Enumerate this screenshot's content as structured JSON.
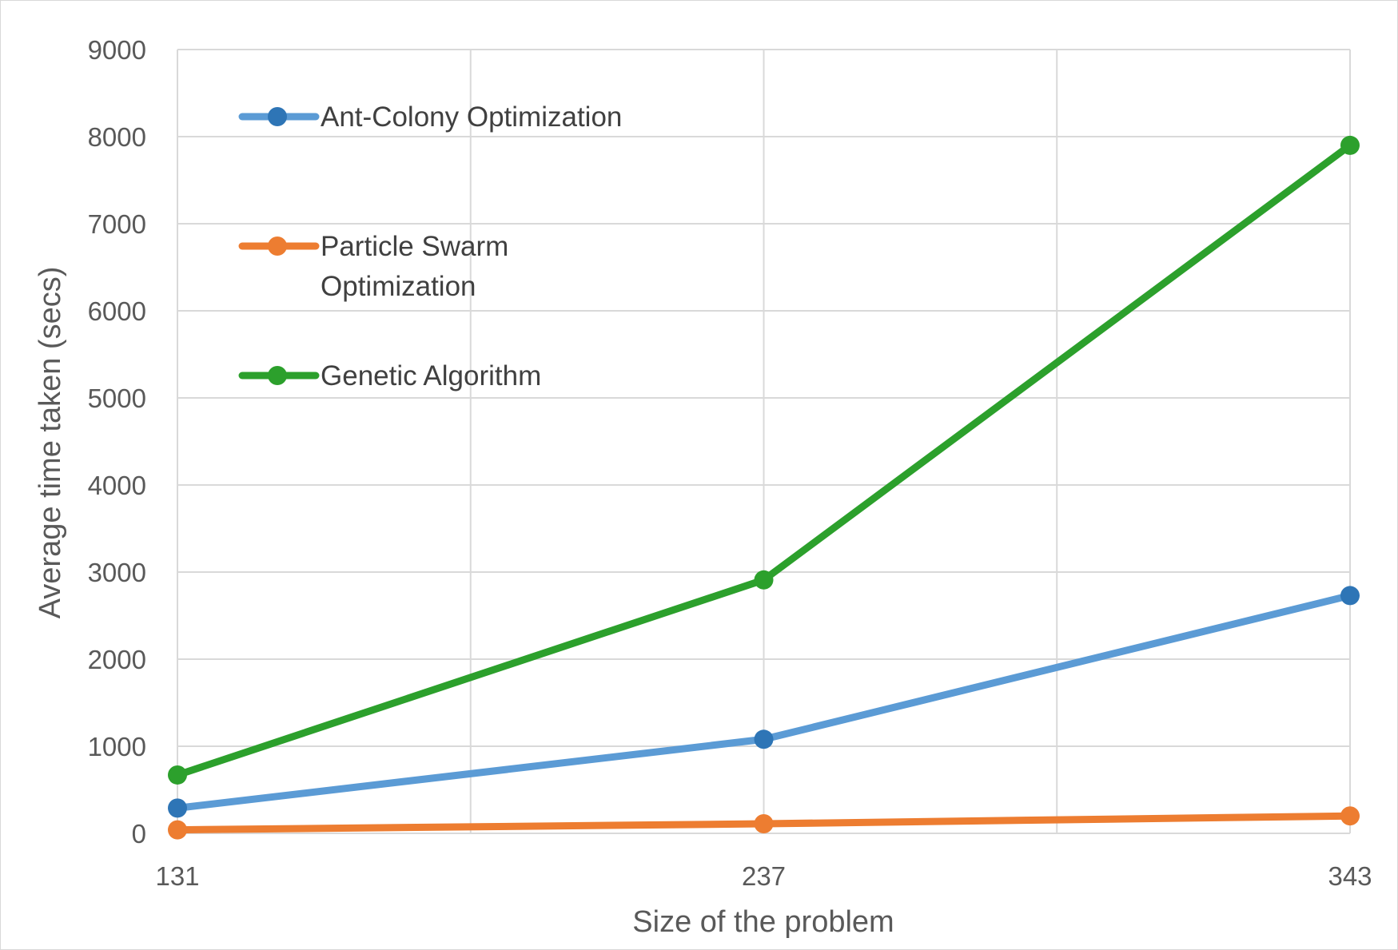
{
  "chart_data": {
    "type": "line",
    "title": "",
    "xlabel": "Size of the problem",
    "ylabel": "Average time taken (secs)",
    "categories": [
      "131",
      "237",
      "343"
    ],
    "ylim": [
      0,
      9000
    ],
    "y_ticks": [
      0,
      1000,
      2000,
      3000,
      4000,
      5000,
      6000,
      7000,
      8000,
      9000
    ],
    "y_tick_labels": [
      "0",
      "1000",
      "2000",
      "3000",
      "4000",
      "5000",
      "6000",
      "7000",
      "8000",
      "9000"
    ],
    "grid": true,
    "legend_position": "top-left",
    "series": [
      {
        "name": "Ant-Colony Optimization",
        "name_lines": [
          "Ant-Colony Optimization"
        ],
        "values": [
          290,
          1080,
          2730
        ],
        "line_color": "#5B9BD5",
        "marker_color": "#2E75B6"
      },
      {
        "name": "Particle Swarm Optimization",
        "name_lines": [
          "Particle Swarm",
          "Optimization"
        ],
        "values": [
          40,
          110,
          200
        ],
        "line_color": "#ED7D31",
        "marker_color": "#ED7D31"
      },
      {
        "name": "Genetic Algorithm",
        "name_lines": [
          "Genetic Algorithm"
        ],
        "values": [
          670,
          2910,
          7900
        ],
        "line_color": "#2CA02C",
        "marker_color": "#2CA02C"
      }
    ],
    "colors": {
      "gridline": "#d9d9d9",
      "text": "#595959",
      "legend_text": "#404040",
      "border": "#d9d9d9"
    }
  }
}
